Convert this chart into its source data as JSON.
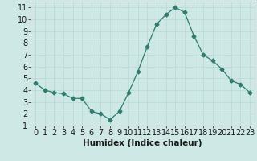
{
  "x": [
    0,
    1,
    2,
    3,
    4,
    5,
    6,
    7,
    8,
    9,
    10,
    11,
    12,
    13,
    14,
    15,
    16,
    17,
    18,
    19,
    20,
    21,
    22,
    23
  ],
  "y": [
    4.6,
    4.0,
    3.8,
    3.7,
    3.3,
    3.3,
    2.2,
    2.0,
    1.5,
    2.2,
    3.8,
    5.6,
    7.7,
    9.6,
    10.4,
    11.0,
    10.6,
    8.6,
    7.0,
    6.5,
    5.8,
    4.8,
    4.5,
    3.8
  ],
  "line_color": "#2e7d6e",
  "marker": "D",
  "marker_size": 2.5,
  "bg_color": "#cde8e5",
  "grid_color": "#b8d8d5",
  "xlabel": "Humidex (Indice chaleur)",
  "ylim": [
    1,
    11.5
  ],
  "xlim": [
    -0.5,
    23.5
  ],
  "yticks": [
    1,
    2,
    3,
    4,
    5,
    6,
    7,
    8,
    9,
    10,
    11
  ],
  "xticks": [
    0,
    1,
    2,
    3,
    4,
    5,
    6,
    7,
    8,
    9,
    10,
    11,
    12,
    13,
    14,
    15,
    16,
    17,
    18,
    19,
    20,
    21,
    22,
    23
  ],
  "tick_fontsize": 7,
  "xlabel_fontsize": 7.5
}
